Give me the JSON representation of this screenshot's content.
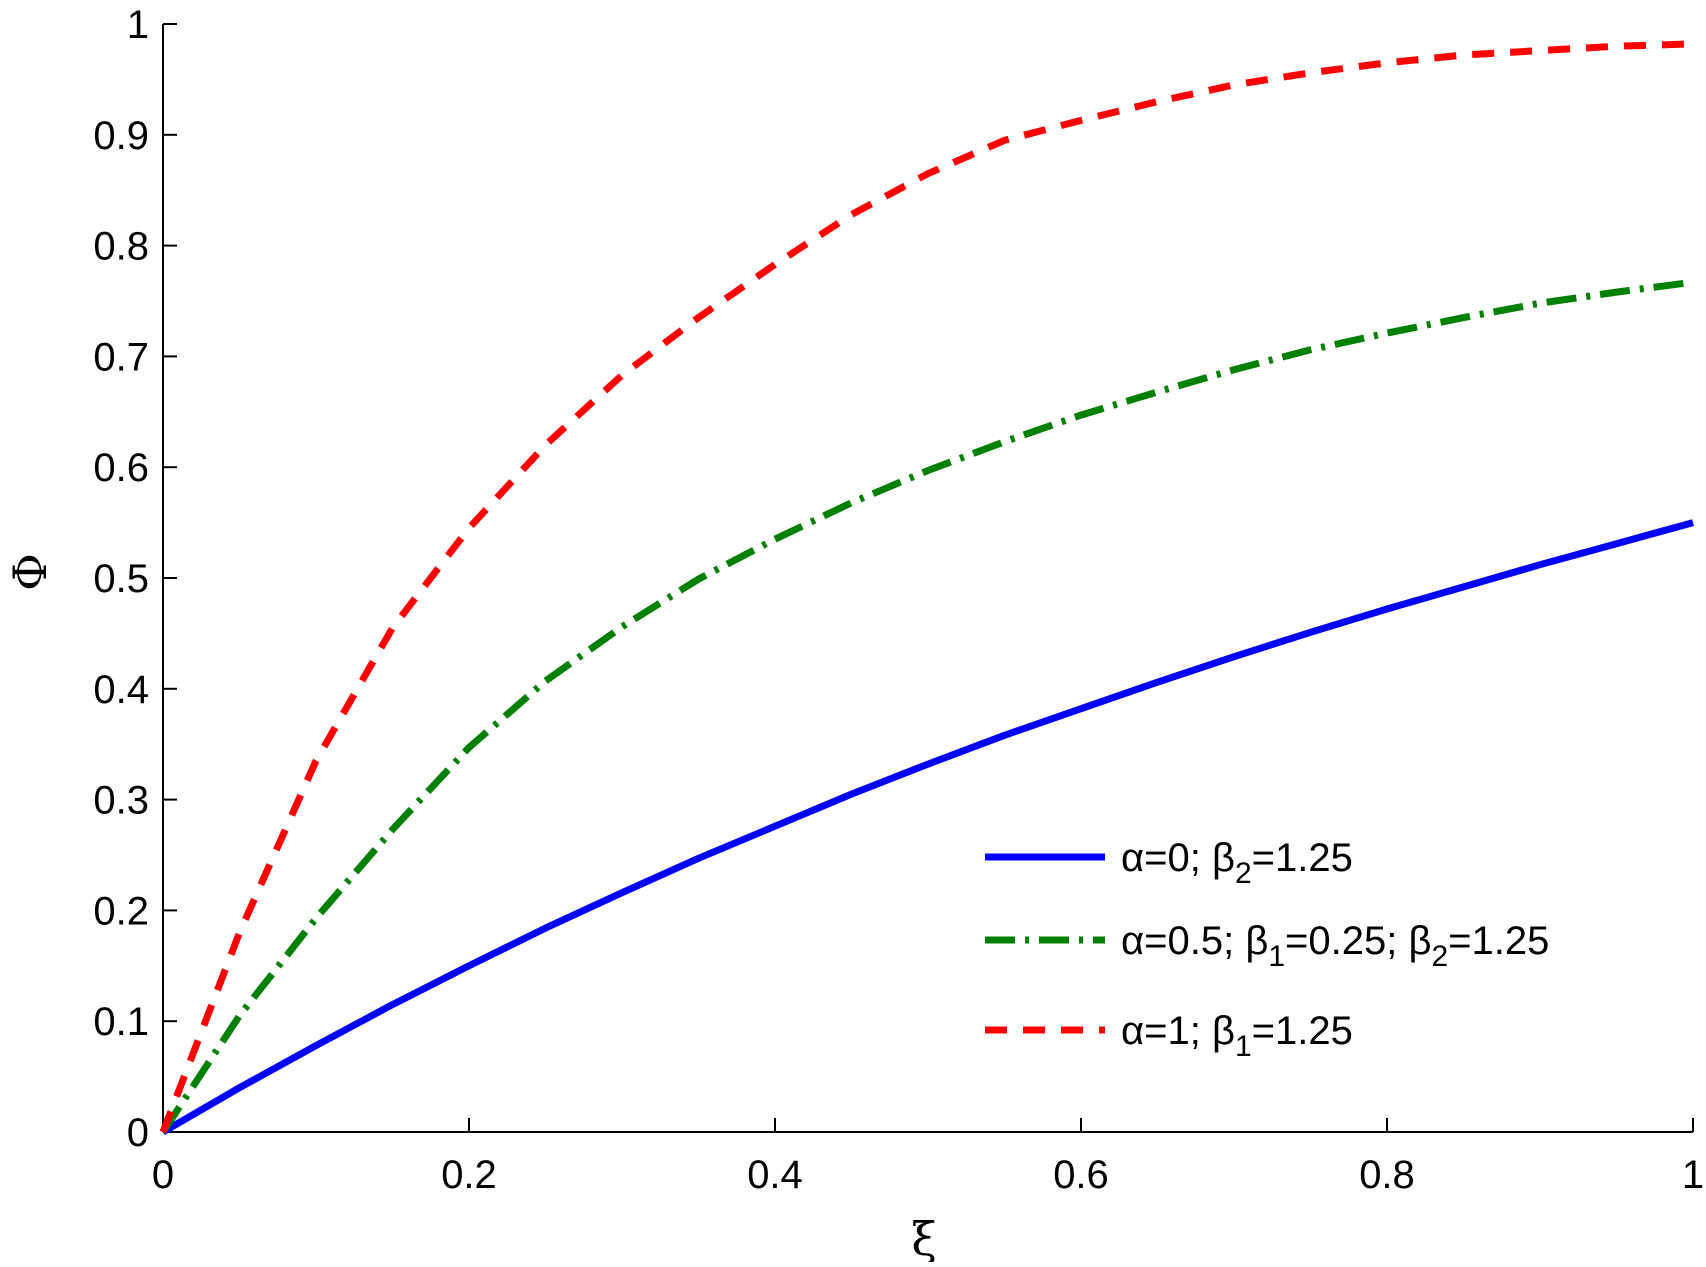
{
  "chart_data": {
    "type": "line",
    "title": "",
    "xlabel": "ξ",
    "ylabel": "Φ",
    "xlim": [
      0,
      1
    ],
    "ylim": [
      0,
      1
    ],
    "xticks": [
      "0",
      "0.2",
      "0.4",
      "0.6",
      "0.8",
      "1"
    ],
    "yticks": [
      "0",
      "0.1",
      "0.2",
      "0.3",
      "0.4",
      "0.5",
      "0.6",
      "0.7",
      "0.8",
      "0.9",
      "1"
    ],
    "grid": false,
    "legend_position": "bottom-right",
    "x": [
      0,
      0.05,
      0.1,
      0.15,
      0.2,
      0.25,
      0.3,
      0.35,
      0.4,
      0.45,
      0.5,
      0.55,
      0.6,
      0.65,
      0.7,
      0.75,
      0.8,
      0.85,
      0.9,
      0.95,
      1.0
    ],
    "series": [
      {
        "legend": {
          "a": "α=0; β",
          "sub1": "2",
          "b": "=1.25",
          "sub2": "",
          "c": ""
        },
        "color": "#0000ff",
        "style": "solid",
        "values": [
          0,
          0.04,
          0.078,
          0.115,
          0.15,
          0.184,
          0.216,
          0.247,
          0.276,
          0.305,
          0.332,
          0.358,
          0.382,
          0.406,
          0.429,
          0.451,
          0.472,
          0.492,
          0.512,
          0.531,
          0.55
        ]
      },
      {
        "legend": {
          "a": "α=0.5; β",
          "sub1": "1",
          "b": "=0.25; β",
          "sub2": "2",
          "c": "=1.25"
        },
        "color": "#008000",
        "style": "dashdot",
        "values": [
          0,
          0.105,
          0.193,
          0.273,
          0.347,
          0.407,
          0.456,
          0.499,
          0.535,
          0.568,
          0.597,
          0.623,
          0.647,
          0.668,
          0.688,
          0.706,
          0.721,
          0.735,
          0.748,
          0.758,
          0.767
        ]
      },
      {
        "legend": {
          "a": "α=1; β",
          "sub1": "1",
          "b": "=1.25",
          "sub2": "",
          "c": ""
        },
        "color": "#ff0000",
        "style": "dashed",
        "values": [
          0,
          0.18,
          0.335,
          0.455,
          0.545,
          0.62,
          0.683,
          0.735,
          0.783,
          0.828,
          0.865,
          0.895,
          0.913,
          0.93,
          0.945,
          0.956,
          0.965,
          0.972,
          0.976,
          0.98,
          0.982
        ]
      }
    ]
  }
}
